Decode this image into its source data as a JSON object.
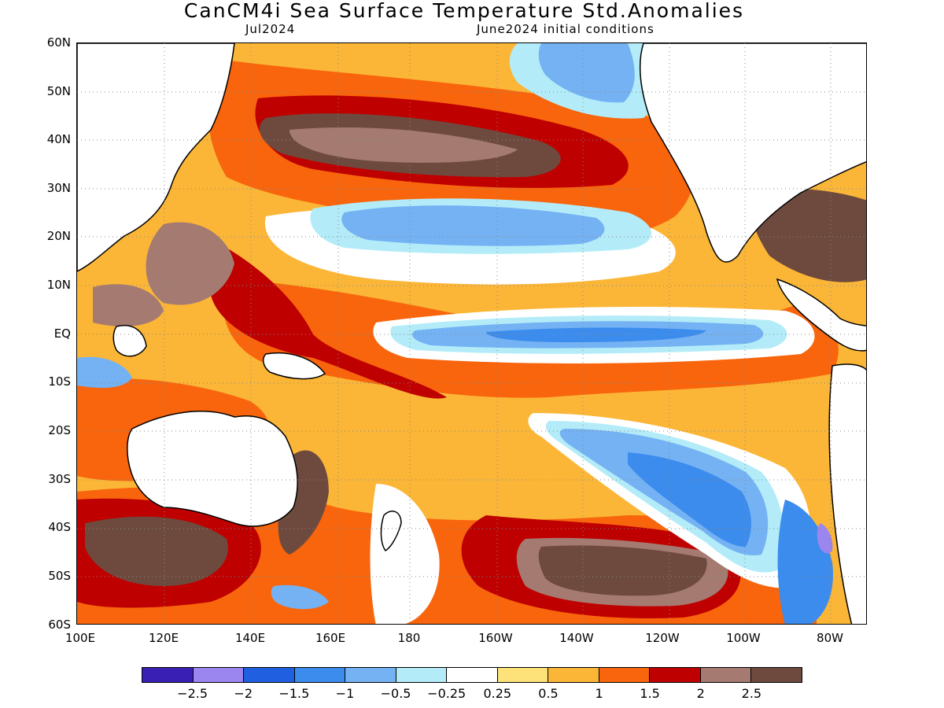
{
  "title": "CanCM4i Sea Surface Temperature Std.Anomalies",
  "subtitle_left": "Jul2024",
  "subtitle_right": "June2024 initial conditions",
  "lat_labels": [
    "60N",
    "50N",
    "40N",
    "30N",
    "20N",
    "10N",
    "EQ",
    "10S",
    "20S",
    "30S",
    "40S",
    "50S",
    "60S"
  ],
  "lon_labels": [
    "100E",
    "120E",
    "140E",
    "160E",
    "180",
    "160W",
    "140W",
    "120W",
    "100W",
    "80W"
  ],
  "colorbar": {
    "colors": [
      "#3a1fb5",
      "#9b86ef",
      "#1f5fe0",
      "#3c8ced",
      "#74b2f4",
      "#b3ecf8",
      "#ffffff",
      "#fde27a",
      "#fbb637",
      "#f8650d",
      "#bf0000",
      "#a57a71",
      "#6e4a3e"
    ],
    "labels": [
      "−2.5",
      "−2",
      "−1.5",
      "−1",
      "−0.5",
      "−0.25",
      "0.25",
      "0.5",
      "1",
      "1.5",
      "2",
      "2.5"
    ]
  },
  "map": {
    "domain": {
      "lon_range": [
        "100E",
        "70W"
      ],
      "lat_range": [
        "60S",
        "60N"
      ]
    },
    "ocean_background": "#f8650d",
    "land_color": "#ffffff",
    "coastline_color": "#000000",
    "grid": "dotted"
  }
}
